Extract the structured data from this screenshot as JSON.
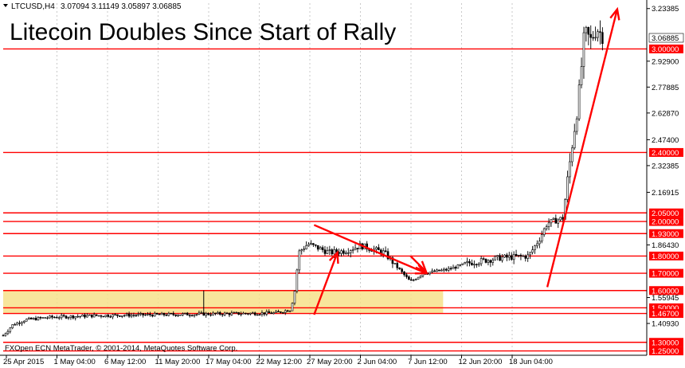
{
  "header": {
    "symbol": "LTCUSD,H4",
    "ohlc": "3.07094 3.11149 3.05897 3.06885"
  },
  "title": "Litecoin Doubles Since Start of Rally",
  "copyright": "FXOpen ECN MetaTrader, © 2001-2014, MetaQuotes Software Corp.",
  "current_price_label": "3.06885",
  "colors": {
    "level_line": "#ff0000",
    "arrow": "#ff0000",
    "zone_fill": "#f7e08a",
    "candle": "#000000",
    "grid": "#bcbcbc",
    "current_price_bg": "#ffffff"
  },
  "chart_data": {
    "type": "candlestick",
    "symbol": "LTCUSD",
    "timeframe": "H4",
    "last_ohlc": {
      "open": 3.07094,
      "high": 3.11149,
      "low": 3.05897,
      "close": 3.06885
    },
    "x_ticks": [
      "25 Apr 2015",
      "1 May 04:00",
      "6 May 12:00",
      "11 May 20:00",
      "17 May 04:00",
      "22 May 12:00",
      "27 May 20:00",
      "2 Jun 04:00",
      "7 Jun 12:00",
      "12 Jun 20:00",
      "18 Jun 04:00"
    ],
    "y_ticks": [
      "3.23385",
      "2.92900",
      "2.77885",
      "2.62870",
      "2.47400",
      "2.32385",
      "2.16915",
      "1.86430",
      "1.55945",
      "1.40930"
    ],
    "y_range": [
      1.225,
      3.265
    ],
    "horizontal_levels": [
      "3.00000",
      "2.40000",
      "2.05000",
      "2.00000",
      "1.93000",
      "1.80000",
      "1.70000",
      "1.60000",
      "1.50000",
      "1.46700",
      "1.30000",
      "1.25000"
    ],
    "highlight_zone": {
      "from": 1.467,
      "to": 1.6,
      "x_start": "25 Apr 2015",
      "x_end": "5 Jun"
    },
    "price_path": [
      {
        "t": 0,
        "p": 1.34
      },
      {
        "t": 6,
        "p": 1.4
      },
      {
        "t": 14,
        "p": 1.43
      },
      {
        "t": 30,
        "p": 1.445
      },
      {
        "t": 60,
        "p": 1.455
      },
      {
        "t": 100,
        "p": 1.46
      },
      {
        "t": 140,
        "p": 1.465
      },
      {
        "t": 175,
        "p": 1.47
      },
      {
        "t": 185,
        "p": 1.49
      },
      {
        "t": 188,
        "p": 1.62
      },
      {
        "t": 190,
        "p": 1.82
      },
      {
        "t": 196,
        "p": 1.87
      },
      {
        "t": 210,
        "p": 1.82
      },
      {
        "t": 220,
        "p": 1.83
      },
      {
        "t": 230,
        "p": 1.86
      },
      {
        "t": 245,
        "p": 1.82
      },
      {
        "t": 255,
        "p": 1.72
      },
      {
        "t": 262,
        "p": 1.65
      },
      {
        "t": 270,
        "p": 1.7
      },
      {
        "t": 285,
        "p": 1.72
      },
      {
        "t": 300,
        "p": 1.76
      },
      {
        "t": 320,
        "p": 1.79
      },
      {
        "t": 338,
        "p": 1.8
      },
      {
        "t": 345,
        "p": 1.9
      },
      {
        "t": 350,
        "p": 1.99
      },
      {
        "t": 360,
        "p": 2.02
      },
      {
        "t": 366,
        "p": 2.45
      },
      {
        "t": 370,
        "p": 2.7
      },
      {
        "t": 374,
        "p": 3.1
      },
      {
        "t": 378,
        "p": 3.05
      },
      {
        "t": 382,
        "p": 3.12
      },
      {
        "t": 386,
        "p": 3.06885
      }
    ],
    "annotations": [
      {
        "type": "arrow",
        "from": {
          "t": 200,
          "p": 1.46
        },
        "to": {
          "t": 215,
          "p": 1.82
        }
      },
      {
        "type": "arrow",
        "from": {
          "t": 200,
          "p": 1.98
        },
        "to": {
          "t": 272,
          "p": 1.7
        }
      },
      {
        "type": "arrow",
        "from": {
          "t": 262,
          "p": 1.8
        },
        "to": {
          "t": 272,
          "p": 1.71
        }
      },
      {
        "type": "arrow",
        "from": {
          "t": 350,
          "p": 1.62
        },
        "to": {
          "t": 395,
          "p": 3.23
        }
      }
    ]
  }
}
